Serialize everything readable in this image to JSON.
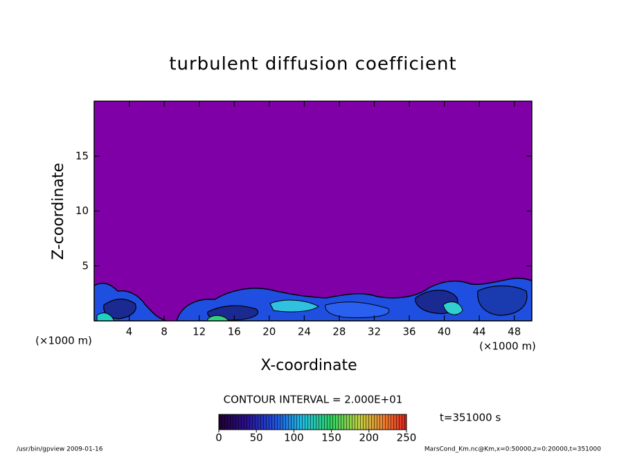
{
  "chart_data": {
    "type": "contour",
    "title": "turbulent diffusion coefficient",
    "xlabel": "X-coordinate",
    "ylabel": "Z-coordinate",
    "x_unit_label": "(×1000 m)",
    "y_unit_label": "(×1000 m)",
    "xlim": [
      0,
      50
    ],
    "ylim": [
      0,
      20
    ],
    "xticks": [
      4,
      8,
      12,
      16,
      20,
      24,
      28,
      32,
      36,
      40,
      44,
      48
    ],
    "yticks": [
      5,
      10,
      15
    ],
    "background_color": "#8000a8",
    "contour_interval_label": "CONTOUR INTERVAL = 2.000E+01",
    "time_label": "t=351000 s",
    "colorbar": {
      "lim": [
        0,
        250
      ],
      "ticks": [
        0,
        50,
        100,
        150,
        200,
        250
      ]
    },
    "footer_left": "/usr/bin/gpview   2009-01-16",
    "footer_right": "MarsCond_Km.nc@Km,x=0:50000,z=0:20000,t=351000"
  }
}
